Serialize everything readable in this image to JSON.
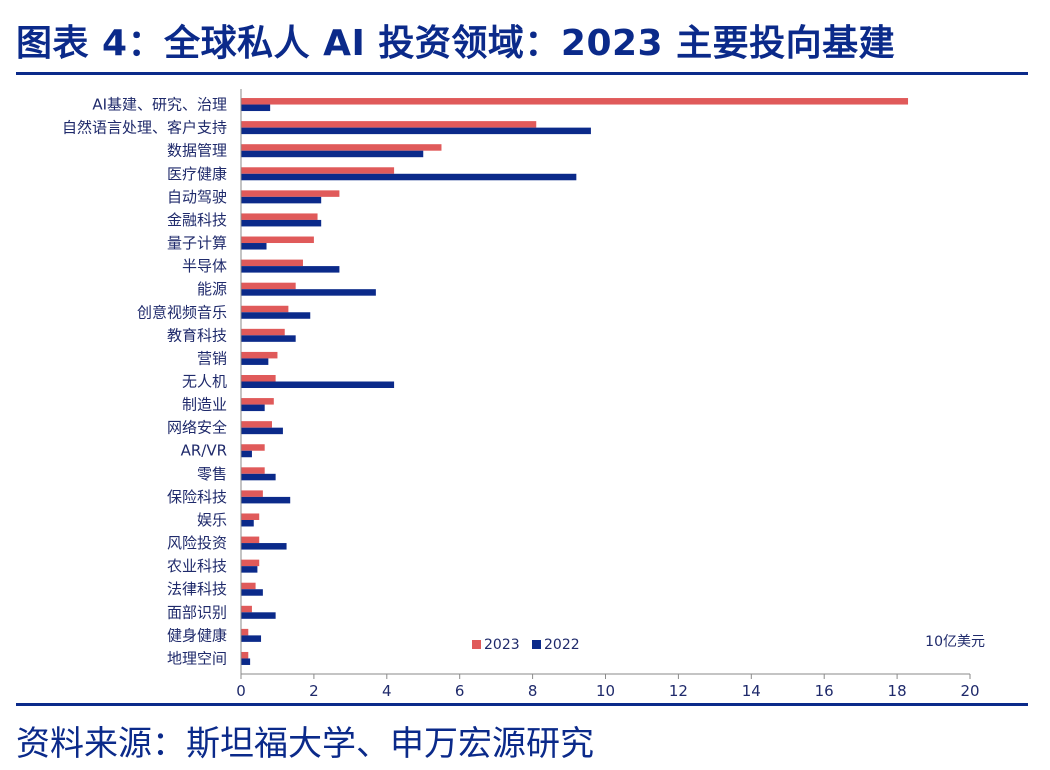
{
  "header": {
    "title": "图表 4：全球私人 AI 投资领域：2023 主要投向基建"
  },
  "footer": {
    "source": "资料来源：斯坦福大学、申万宏源研究"
  },
  "colors": {
    "series_2023": "#e05a5a",
    "series_2022": "#0b2a8a",
    "rule": "#0b2a8a",
    "text": "#1f2a6b"
  },
  "chart_data": {
    "type": "bar",
    "orientation": "horizontal",
    "title": "",
    "xlabel": "",
    "ylabel": "",
    "unit": "10亿美元",
    "xlim": [
      0,
      20
    ],
    "xticks": [
      0,
      2,
      4,
      6,
      8,
      10,
      12,
      14,
      16,
      18,
      20
    ],
    "grid": false,
    "legend_position": "bottom-center",
    "categories": [
      "AI基建、研究、治理",
      "自然语言处理、客户支持",
      "数据管理",
      "医疗健康",
      "自动驾驶",
      "金融科技",
      "量子计算",
      "半导体",
      "能源",
      "创意视频音乐",
      "教育科技",
      "营销",
      "无人机",
      "制造业",
      "网络安全",
      "AR/VR",
      "零售",
      "保险科技",
      "娱乐",
      "风险投资",
      "农业科技",
      "法律科技",
      "面部识别",
      "健身健康",
      "地理空间"
    ],
    "series": [
      {
        "name": "2023",
        "color": "#e05a5a",
        "values": [
          18.3,
          8.1,
          5.5,
          4.2,
          2.7,
          2.1,
          2.0,
          1.7,
          1.5,
          1.3,
          1.2,
          1.0,
          0.95,
          0.9,
          0.85,
          0.65,
          0.65,
          0.6,
          0.5,
          0.5,
          0.5,
          0.4,
          0.3,
          0.2,
          0.2
        ]
      },
      {
        "name": "2022",
        "color": "#0b2a8a",
        "values": [
          0.8,
          9.6,
          5.0,
          9.2,
          2.2,
          2.2,
          0.7,
          2.7,
          3.7,
          1.9,
          1.5,
          0.75,
          4.2,
          0.65,
          1.15,
          0.3,
          0.95,
          1.35,
          0.35,
          1.25,
          0.45,
          0.6,
          0.95,
          0.55,
          0.25
        ]
      }
    ]
  }
}
